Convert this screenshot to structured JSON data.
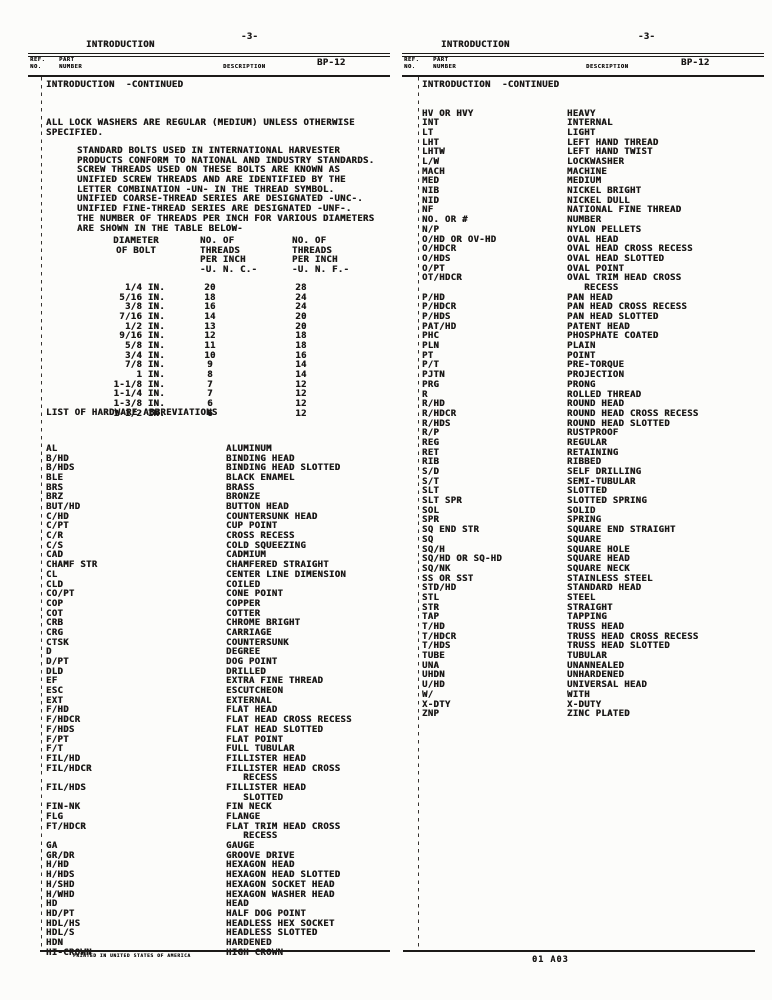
{
  "hdr": {
    "page_number": "-3-",
    "running_title": "INTRODUCTION",
    "ref_no": "REF.\nNO.",
    "part_number": "PART\nNUMBER",
    "description": "DESCRIPTION",
    "code": "BP-12"
  },
  "ink_color": "#1a1817",
  "paper_color": "#fcfcfa",
  "left_page": {
    "section_heading": "INTRODUCTION  -CONTINUED",
    "notice_lines": [
      "ALL LOCK WASHERS ARE REGULAR (MEDIUM) UNLESS OTHERWISE",
      "SPECIFIED."
    ],
    "paragraph_lines": [
      "STANDARD BOLTS USED IN INTERNATIONAL HARVESTER",
      "PRODUCTS CONFORM TO NATIONAL AND INDUSTRY STANDARDS.",
      "SCREW THREADS USED ON THESE BOLTS ARE KNOWN AS",
      "UNIFIED SCREW THREADS AND ARE IDENTIFIED BY THE",
      "LETTER COMBINATION -UN- IN THE THREAD SYMBOL.",
      "UNIFIED COARSE-THREAD SERIES ARE DESIGNATED -UNC-.",
      "UNIFIED FINE-THREAD SERIES ARE DESIGNATED -UNF-.",
      "THE NUMBER OF THREADS PER INCH FOR VARIOUS DIAMETERS",
      "ARE SHOWN IN THE TABLE BELOW-"
    ],
    "thread_table": {
      "col1_header_lines": [
        "DIAMETER",
        "OF BOLT"
      ],
      "col2_header_lines": [
        "NO. OF",
        "THREADS",
        "PER INCH",
        "-U. N. C.-"
      ],
      "col3_header_lines": [
        "NO. OF",
        "THREADS",
        "PER INCH",
        "-U. N. F.-"
      ],
      "rows": [
        {
          "d": "1/4 IN.",
          "c": "20",
          "f": "28"
        },
        {
          "d": "5/16 IN.",
          "c": "18",
          "f": "24"
        },
        {
          "d": "3/8 IN.",
          "c": "16",
          "f": "24"
        },
        {
          "d": "7/16 IN.",
          "c": "14",
          "f": "20"
        },
        {
          "d": "1/2 IN.",
          "c": "13",
          "f": "20"
        },
        {
          "d": "9/16 IN.",
          "c": "12",
          "f": "18"
        },
        {
          "d": "5/8 IN.",
          "c": "11",
          "f": "18"
        },
        {
          "d": "3/4 IN.",
          "c": "10",
          "f": "16"
        },
        {
          "d": "7/8 IN.",
          "c": "9",
          "f": "14"
        },
        {
          "d": "1 IN.",
          "c": "8",
          "f": "14"
        },
        {
          "d": "1-1/8 IN.",
          "c": "7",
          "f": "12"
        },
        {
          "d": "1-1/4 IN.",
          "c": "7",
          "f": "12"
        },
        {
          "d": "1-3/8 IN.",
          "c": "6",
          "f": "12"
        },
        {
          "d": "1-1/2 IN.",
          "c": "6",
          "f": "12"
        }
      ]
    },
    "list_title": "LIST OF HARDWARE ABBREVIATIONS",
    "abbreviations": [
      {
        "a": "AL",
        "d": "ALUMINUM"
      },
      {
        "a": "B/HD",
        "d": "BINDING HEAD"
      },
      {
        "a": "B/HDS",
        "d": "BINDING HEAD SLOTTED"
      },
      {
        "a": "BLE",
        "d": "BLACK ENAMEL"
      },
      {
        "a": "BRS",
        "d": "BRASS"
      },
      {
        "a": "BRZ",
        "d": "BRONZE"
      },
      {
        "a": "BUT/HD",
        "d": "BUTTON HEAD"
      },
      {
        "a": "C/HD",
        "d": "COUNTERSUNK HEAD"
      },
      {
        "a": "C/PT",
        "d": "CUP POINT"
      },
      {
        "a": "C/R",
        "d": "CROSS RECESS"
      },
      {
        "a": "C/S",
        "d": "COLD SQUEEZING"
      },
      {
        "a": "CAD",
        "d": "CADMIUM"
      },
      {
        "a": "CHAMF STR",
        "d": "CHAMFERED STRAIGHT"
      },
      {
        "a": "CL",
        "d": "CENTER LINE DIMENSION"
      },
      {
        "a": "CLD",
        "d": "COILED"
      },
      {
        "a": "CO/PT",
        "d": "CONE POINT"
      },
      {
        "a": "COP",
        "d": "COPPER"
      },
      {
        "a": "COT",
        "d": "COTTER"
      },
      {
        "a": "CRB",
        "d": "CHROME BRIGHT"
      },
      {
        "a": "CRG",
        "d": "CARRIAGE"
      },
      {
        "a": "CTSK",
        "d": "COUNTERSUNK"
      },
      {
        "a": "D",
        "d": "DEGREE"
      },
      {
        "a": "D/PT",
        "d": "DOG POINT"
      },
      {
        "a": "DLD",
        "d": "DRILLED"
      },
      {
        "a": "EF",
        "d": "EXTRA FINE THREAD"
      },
      {
        "a": "ESC",
        "d": "ESCUTCHEON"
      },
      {
        "a": "EXT",
        "d": "EXTERNAL"
      },
      {
        "a": "F/HD",
        "d": "FLAT HEAD"
      },
      {
        "a": "F/HDCR",
        "d": "FLAT HEAD CROSS RECESS"
      },
      {
        "a": "F/HDS",
        "d": "FLAT HEAD SLOTTED"
      },
      {
        "a": "F/PT",
        "d": "FLAT POINT"
      },
      {
        "a": "F/T",
        "d": "FULL TUBULAR"
      },
      {
        "a": "FIL/HD",
        "d": "FILLISTER HEAD"
      },
      {
        "a": "FIL/HDCR",
        "d": "FILLISTER HEAD CROSS"
      },
      {
        "a": "",
        "d": "   RECESS"
      },
      {
        "a": "FIL/HDS",
        "d": "FILLISTER HEAD"
      },
      {
        "a": "",
        "d": "   SLOTTED"
      },
      {
        "a": "FIN-NK",
        "d": "FIN NECK"
      },
      {
        "a": "FLG",
        "d": "FLANGE"
      },
      {
        "a": "FT/HDCR",
        "d": "FLAT TRIM HEAD CROSS"
      },
      {
        "a": "",
        "d": "   RECESS"
      },
      {
        "a": "GA",
        "d": "GAUGE"
      },
      {
        "a": "GR/DR",
        "d": "GROOVE DRIVE"
      },
      {
        "a": "H/HD",
        "d": "HEXAGON HEAD"
      },
      {
        "a": "H/HDS",
        "d": "HEXAGON HEAD SLOTTED"
      },
      {
        "a": "H/SHD",
        "d": "HEXAGON SOCKET HEAD"
      },
      {
        "a": "H/WHD",
        "d": "HEXAGON WASHER HEAD"
      },
      {
        "a": "HD",
        "d": "HEAD"
      },
      {
        "a": "HD/PT",
        "d": "HALF DOG POINT"
      },
      {
        "a": "HDL/HS",
        "d": "HEADLESS HEX SOCKET"
      },
      {
        "a": "HDL/S",
        "d": "HEADLESS SLOTTED"
      },
      {
        "a": "HDN",
        "d": "HARDENED"
      },
      {
        "a": "HI-CROWN",
        "d": "HIGH CROWN"
      }
    ],
    "footer": "PRINTED IN UNITED STATES OF AMERICA"
  },
  "right_page": {
    "section_heading": "INTRODUCTION  -CONTINUED",
    "abbreviations": [
      {
        "a": "HV OR HVY",
        "d": "HEAVY"
      },
      {
        "a": "INT",
        "d": "INTERNAL"
      },
      {
        "a": "LT",
        "d": "LIGHT"
      },
      {
        "a": "LHT",
        "d": "LEFT HAND THREAD"
      },
      {
        "a": "LHTW",
        "d": "LEFT HAND TWIST"
      },
      {
        "a": "L/W",
        "d": "LOCKWASHER"
      },
      {
        "a": "MACH",
        "d": "MACHINE"
      },
      {
        "a": "MED",
        "d": "MEDIUM"
      },
      {
        "a": "NIB",
        "d": "NICKEL BRIGHT"
      },
      {
        "a": "NID",
        "d": "NICKEL DULL"
      },
      {
        "a": "NF",
        "d": "NATIONAL FINE THREAD"
      },
      {
        "a": "NO. OR #",
        "d": "NUMBER"
      },
      {
        "a": "N/P",
        "d": "NYLON PELLETS"
      },
      {
        "a": "O/HD OR OV-HD",
        "d": "OVAL HEAD"
      },
      {
        "a": "O/HDCR",
        "d": "OVAL HEAD CROSS RECESS"
      },
      {
        "a": "O/HDS",
        "d": "OVAL HEAD SLOTTED"
      },
      {
        "a": "O/PT",
        "d": "OVAL POINT"
      },
      {
        "a": "OT/HDCR",
        "d": "OVAL TRIM HEAD CROSS"
      },
      {
        "a": "",
        "d": "   RECESS"
      },
      {
        "a": "P/HD",
        "d": "PAN HEAD"
      },
      {
        "a": "P/HDCR",
        "d": "PAN HEAD CROSS RECESS"
      },
      {
        "a": "P/HDS",
        "d": "PAN HEAD SLOTTED"
      },
      {
        "a": "PAT/HD",
        "d": "PATENT HEAD"
      },
      {
        "a": "PHC",
        "d": "PHOSPHATE COATED"
      },
      {
        "a": "PLN",
        "d": "PLAIN"
      },
      {
        "a": "PT",
        "d": "POINT"
      },
      {
        "a": "P/T",
        "d": "PRE-TORQUE"
      },
      {
        "a": "PJTN",
        "d": "PROJECTION"
      },
      {
        "a": "PRG",
        "d": "PRONG"
      },
      {
        "a": "R",
        "d": "ROLLED THREAD"
      },
      {
        "a": "R/HD",
        "d": "ROUND HEAD"
      },
      {
        "a": "R/HDCR",
        "d": "ROUND HEAD CROSS RECESS"
      },
      {
        "a": "R/HDS",
        "d": "ROUND HEAD SLOTTED"
      },
      {
        "a": "R/P",
        "d": "RUSTPROOF"
      },
      {
        "a": "REG",
        "d": "REGULAR"
      },
      {
        "a": "RET",
        "d": "RETAINING"
      },
      {
        "a": "RIB",
        "d": "RIBBED"
      },
      {
        "a": "S/D",
        "d": "SELF DRILLING"
      },
      {
        "a": "S/T",
        "d": "SEMI-TUBULAR"
      },
      {
        "a": "SLT",
        "d": "SLOTTED"
      },
      {
        "a": "SLT SPR",
        "d": "SLOTTED SPRING"
      },
      {
        "a": "SOL",
        "d": "SOLID"
      },
      {
        "a": "SPR",
        "d": "SPRING"
      },
      {
        "a": "SQ END STR",
        "d": "SQUARE END STRAIGHT"
      },
      {
        "a": "SQ",
        "d": "SQUARE"
      },
      {
        "a": "SQ/H",
        "d": "SQUARE HOLE"
      },
      {
        "a": "SQ/HD OR SQ-HD",
        "d": "SQUARE HEAD"
      },
      {
        "a": "SQ/NK",
        "d": "SQUARE NECK"
      },
      {
        "a": "SS OR SST",
        "d": "STAINLESS STEEL"
      },
      {
        "a": "STD/HD",
        "d": "STANDARD HEAD"
      },
      {
        "a": "STL",
        "d": "STEEL"
      },
      {
        "a": "STR",
        "d": "STRAIGHT"
      },
      {
        "a": "TAP",
        "d": "TAPPING"
      },
      {
        "a": "T/HD",
        "d": "TRUSS HEAD"
      },
      {
        "a": "T/HDCR",
        "d": "TRUSS HEAD CROSS RECESS"
      },
      {
        "a": "T/HDS",
        "d": "TRUSS HEAD SLOTTED"
      },
      {
        "a": "TUBE",
        "d": "TUBULAR"
      },
      {
        "a": "UNA",
        "d": "UNANNEALED"
      },
      {
        "a": "UHDN",
        "d": "UNHARDENED"
      },
      {
        "a": "U/HD",
        "d": "UNIVERSAL HEAD"
      },
      {
        "a": "W/",
        "d": "WITH"
      },
      {
        "a": "X-DTY",
        "d": "X-DUTY"
      },
      {
        "a": "ZNP",
        "d": "ZINC PLATED"
      }
    ],
    "footer": "01 A03"
  }
}
